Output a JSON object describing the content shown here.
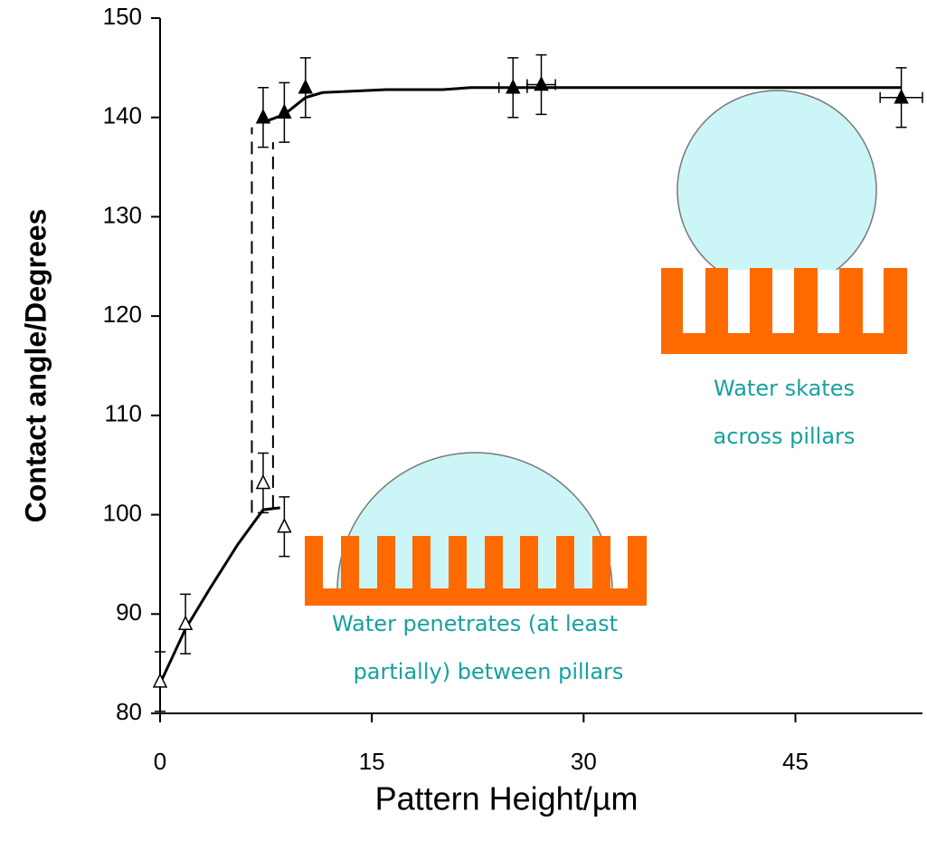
{
  "chart_data": {
    "type": "scatter",
    "x_label": "Pattern Height/µm",
    "y_label": "Contact angle/Degrees",
    "xlim": [
      0,
      54
    ],
    "xticks": [
      0,
      15,
      30,
      45
    ],
    "ylim": [
      80,
      150
    ],
    "yticks": [
      80,
      90,
      100,
      110,
      120,
      130,
      140,
      150
    ],
    "series": [
      {
        "marker": "open-triangle",
        "color": "#000000",
        "x": [
          0,
          1.8,
          7.3,
          8.8
        ],
        "values": [
          83.2,
          89,
          103.2,
          98.8
        ],
        "yerr": [
          3,
          3,
          3,
          3
        ]
      },
      {
        "marker": "filled-triangle",
        "color": "#000000",
        "x": [
          7.3,
          8.8,
          10.3,
          25,
          27,
          52.5
        ],
        "values": [
          140,
          140.5,
          143,
          143,
          143.3,
          142
        ],
        "yerr": [
          3,
          3,
          3,
          3,
          3,
          3
        ],
        "xerr": [
          0,
          0,
          0,
          1,
          1,
          1.5
        ]
      }
    ],
    "curves": [
      {
        "dash": false,
        "x": [
          0,
          1.8,
          3.5,
          5.5,
          7.3,
          8.5
        ],
        "y": [
          83,
          88.5,
          92.5,
          97,
          100.5,
          100.7
        ]
      },
      {
        "dash": false,
        "x": [
          7.3,
          8.8,
          10.3,
          11.5,
          13,
          16,
          20,
          22,
          52.5
        ],
        "y": [
          139.5,
          140.3,
          142,
          142.5,
          142.6,
          142.8,
          142.8,
          143,
          143
        ]
      },
      {
        "dash": true,
        "x": [
          6.5,
          6.5
        ],
        "y": [
          100.2,
          139
        ]
      },
      {
        "dash": true,
        "x": [
          8,
          8
        ],
        "y": [
          100.7,
          137.5
        ]
      }
    ],
    "annotations": [
      {
        "lines": [
          "Water skates",
          "across pillars"
        ]
      },
      {
        "lines": [
          "Water penetrates (at least",
          "partially) between pillars"
        ]
      }
    ]
  }
}
